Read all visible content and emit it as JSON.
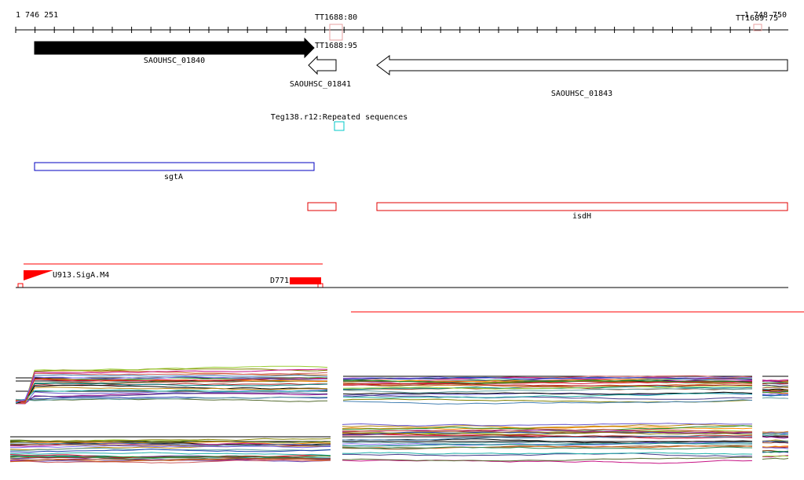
{
  "ruler": {
    "start_label": "1 746 251",
    "end_label": "1 748 750"
  },
  "terminators": [
    {
      "label": "TT1688:80",
      "stroke": "#e8a0a0"
    },
    {
      "label": "TT1688:95",
      "stroke": "#e8a0a0"
    },
    {
      "label": "TT1689:75",
      "stroke": "#e8a0a0"
    }
  ],
  "genes": [
    {
      "label": "SAOUHSC_01840",
      "strand": "+",
      "fill": "#000000"
    },
    {
      "label": "SAOUHSC_01841",
      "strand": "-",
      "fill": "#ffffff"
    },
    {
      "label": "SAOUHSC_01843",
      "strand": "-",
      "fill": "#ffffff"
    }
  ],
  "repeats": [
    {
      "label": "Teg138.r12:Repeated sequences",
      "stroke": "#00c8c8"
    }
  ],
  "operons": [
    {
      "label": "sgtA",
      "stroke": "#0000c0"
    },
    {
      "label": "",
      "stroke": "#e00000"
    },
    {
      "label": "isdH",
      "stroke": "#e00000"
    }
  ],
  "transcripts": [
    {
      "label": "U913.SigA.M4",
      "fill": "#ff0000"
    },
    {
      "label": "D771",
      "fill": "#ff0000"
    }
  ],
  "colors": {
    "accent_red": "#ff0000",
    "baseline": "#000000"
  },
  "expression_profiles": {
    "panels": 6,
    "series_count": 24,
    "palette": [
      "#b22222",
      "#228b22",
      "#1e3fae",
      "#8b008b",
      "#d2691e",
      "#2e8b57",
      "#808000",
      "#4682b4",
      "#a0522d",
      "#6a5acd",
      "#cd5c5c",
      "#008080",
      "#9acd32",
      "#ff8c00",
      "#483d8b",
      "#000000",
      "#c71585",
      "#556b2f",
      "#b8860b",
      "#5f9ea0",
      "#8b4513",
      "#20b2aa",
      "#dc143c",
      "#7b68ee"
    ]
  }
}
